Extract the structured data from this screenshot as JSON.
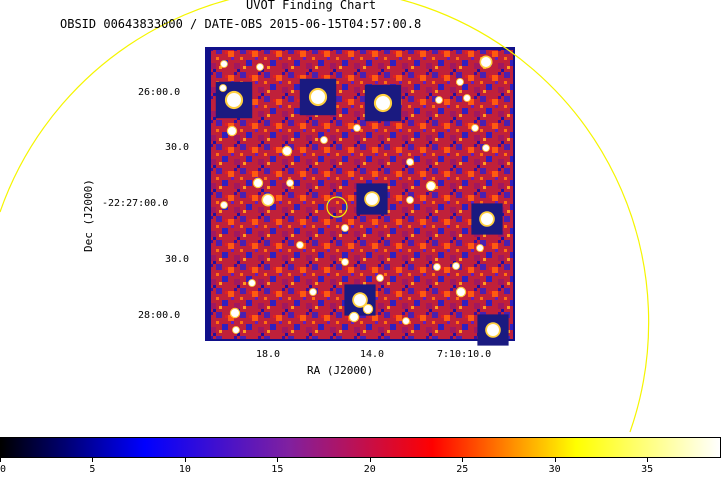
{
  "chart": {
    "title": "UVOT Finding Chart",
    "subtitle": "OBSID 00643833000 / DATE-OBS 2015-06-15T04:57:00.8",
    "xlabel": "RA (J2000)",
    "ylabel": "Dec (J2000)",
    "x_ticks": [
      "18.0",
      "14.0",
      "7:10:10.0"
    ],
    "y_ticks": [
      "26:00.0",
      "30.0",
      "-22:27:00.0",
      "30.0",
      "28:00.0"
    ]
  },
  "colorbar": {
    "ticks": [
      "0",
      "5",
      "10",
      "15",
      "20",
      "25",
      "30",
      "35"
    ],
    "range": [
      0,
      39
    ]
  },
  "colors": {
    "circle": "#f5f500",
    "frame": "#10108a",
    "cmap": [
      "#000000",
      "#0000ff",
      "#8020a0",
      "#ff0000",
      "#ffff00",
      "#ffffff"
    ]
  }
}
